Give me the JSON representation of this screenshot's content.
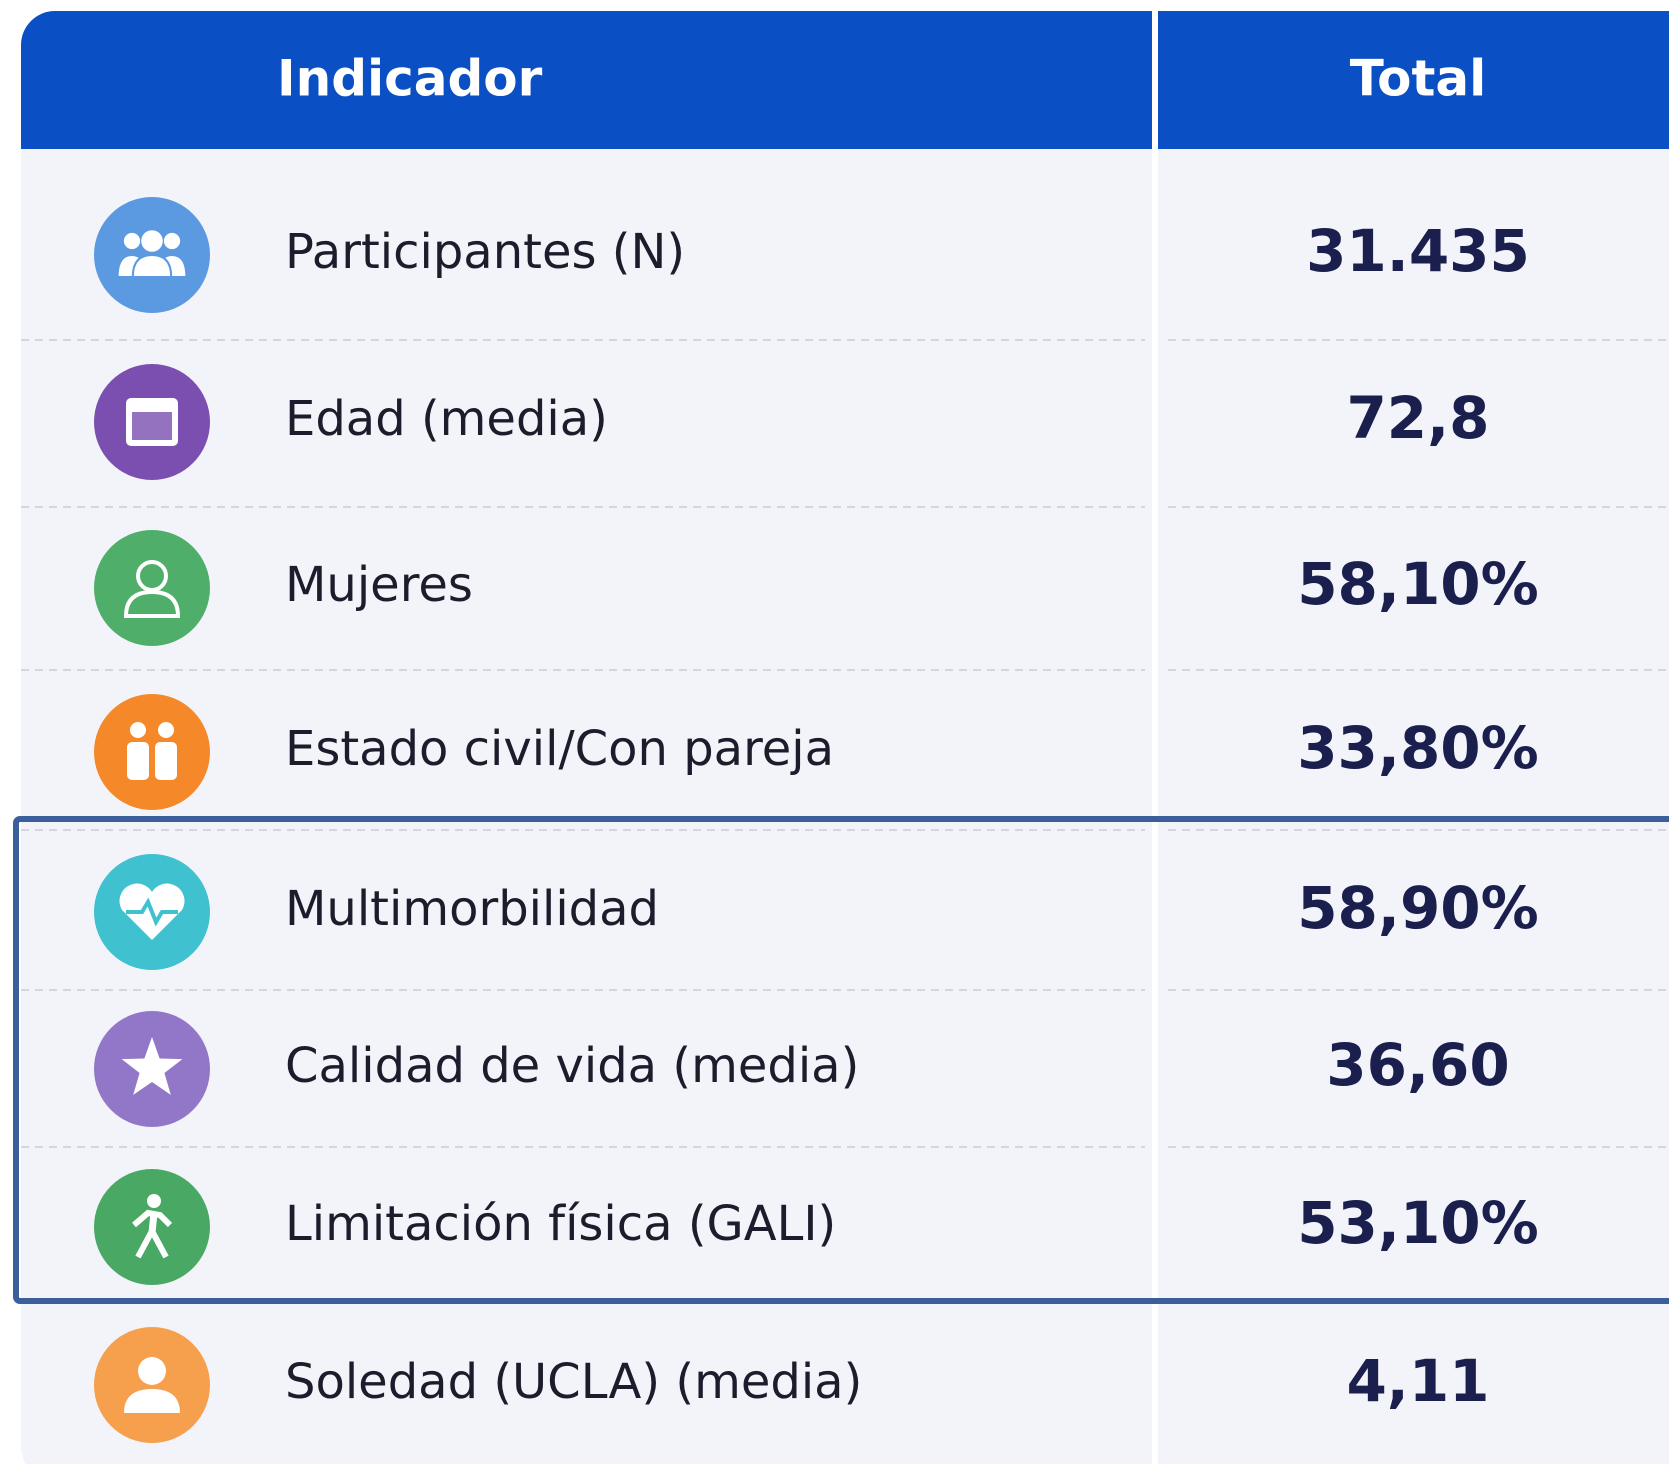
{
  "table": {
    "header": [
      "Indicador",
      "Total"
    ],
    "rows": [
      [
        "Participantes (N)",
        "31.435"
      ],
      [
        "Edad (media)",
        "72,8"
      ],
      [
        "Mujeres",
        "58,10%"
      ],
      [
        "Estado civil/Con pareja",
        "33,80%"
      ],
      [
        "Multimorbilidad",
        "58,90%"
      ],
      [
        "Calidad de vida (media)",
        "36,60"
      ],
      [
        "Limitación física (GALI)",
        "53,10%"
      ],
      [
        "Soledad (UCLA) (media)",
        "4,11"
      ]
    ]
  }
}
